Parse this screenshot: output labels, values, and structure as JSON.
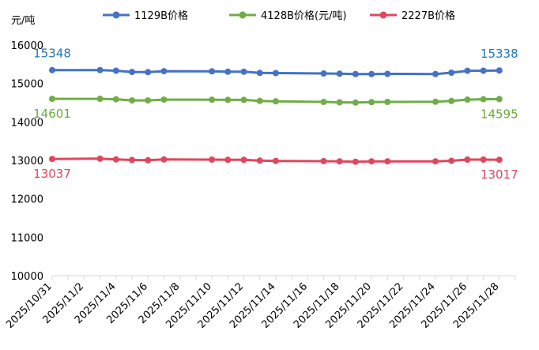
{
  "chart_data": {
    "type": "line",
    "ylabel": "元/吨",
    "ylim": [
      10000,
      16000
    ],
    "yticks": [
      10000,
      11000,
      12000,
      13000,
      14000,
      15000,
      16000
    ],
    "xlim": [
      "2025-10-31",
      "2025-11-29"
    ],
    "x_tick_labels": [
      "2025/10/31",
      "2025/11/2",
      "2025/11/4",
      "2025/11/6",
      "2025/11/8",
      "2025/11/10",
      "2025/11/12",
      "2025/11/14",
      "2025/11/16",
      "2025/11/18",
      "2025/11/20",
      "2025/11/22",
      "2025/11/24",
      "2025/11/26",
      "2025/11/28"
    ],
    "x_tick_dates": [
      "2025-10-31",
      "2025-11-02",
      "2025-11-04",
      "2025-11-06",
      "2025-11-08",
      "2025-11-10",
      "2025-11-12",
      "2025-11-14",
      "2025-11-16",
      "2025-11-18",
      "2025-11-20",
      "2025-11-22",
      "2025-11-24",
      "2025-11-26",
      "2025-11-28"
    ],
    "x": [
      "2025-10-31",
      "2025-11-03",
      "2025-11-04",
      "2025-11-05",
      "2025-11-06",
      "2025-11-07",
      "2025-11-10",
      "2025-11-11",
      "2025-11-12",
      "2025-11-13",
      "2025-11-14",
      "2025-11-17",
      "2025-11-18",
      "2025-11-19",
      "2025-11-20",
      "2025-11-21",
      "2025-11-24",
      "2025-11-25",
      "2025-11-26",
      "2025-11-27",
      "2025-11-28"
    ],
    "grid": false,
    "legend_position": "top",
    "series": [
      {
        "name": "1129B价格",
        "color": "#4472c4",
        "values": [
          15348,
          15348,
          15333,
          15300,
          15295,
          15320,
          15315,
          15305,
          15305,
          15275,
          15270,
          15260,
          15255,
          15245,
          15245,
          15250,
          15245,
          15280,
          15330,
          15333,
          15338
        ],
        "first_label": "15348",
        "last_label": "15338",
        "label_position": "above",
        "label_color": "#1f77b4"
      },
      {
        "name": "4128B价格(元/吨)",
        "color": "#70ad47",
        "values": [
          14601,
          14601,
          14590,
          14560,
          14560,
          14580,
          14578,
          14575,
          14575,
          14548,
          14535,
          14520,
          14510,
          14505,
          14515,
          14520,
          14525,
          14545,
          14580,
          14590,
          14595
        ],
        "first_label": "14601",
        "last_label": "14595",
        "label_position": "below",
        "label_color": "#6aaa3a"
      },
      {
        "name": "2227B价格",
        "color": "#e0475e",
        "values": [
          13037,
          13045,
          13025,
          13010,
          13005,
          13025,
          13020,
          13015,
          13015,
          12995,
          12985,
          12980,
          12975,
          12965,
          12975,
          12975,
          12975,
          12990,
          13020,
          13020,
          13017
        ],
        "first_label": "13037",
        "last_label": "13017",
        "label_position": "below",
        "label_color": "#e0475e"
      }
    ]
  }
}
